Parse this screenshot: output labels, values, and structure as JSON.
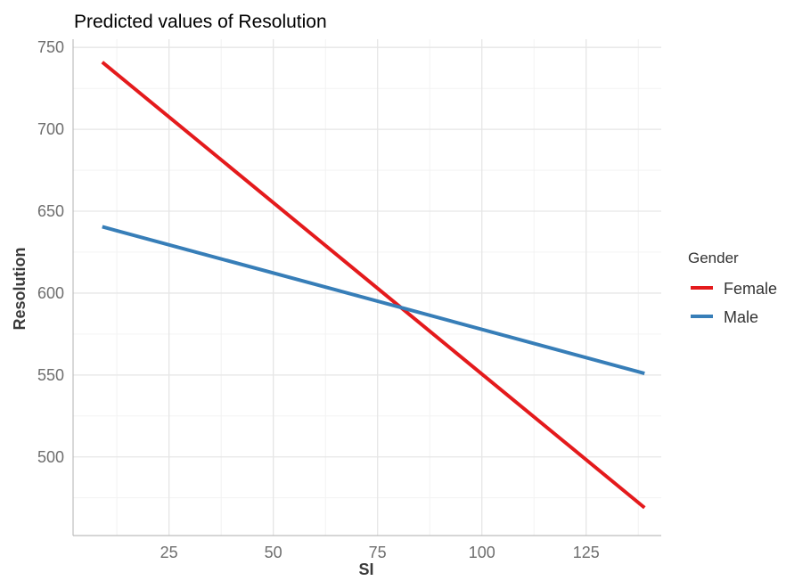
{
  "chart_data": {
    "type": "line",
    "title": "Predicted values of Resolution",
    "xlabel": "SI",
    "ylabel": "Resolution",
    "xlim": [
      2,
      143
    ],
    "ylim": [
      452,
      755
    ],
    "x_ticks": [
      25,
      50,
      75,
      100,
      125
    ],
    "x_minor_ticks": [
      12.5,
      37.5,
      62.5,
      87.5,
      112.5,
      137.5
    ],
    "y_ticks": [
      500,
      550,
      600,
      650,
      700,
      750
    ],
    "y_minor_ticks": [
      475,
      525,
      575,
      625,
      675,
      725
    ],
    "grid": true,
    "legend": {
      "title": "Gender",
      "position": "right"
    },
    "series": [
      {
        "name": "Female",
        "color": "#E41A1C",
        "x": [
          9,
          139
        ],
        "y": [
          741,
          469
        ]
      },
      {
        "name": "Male",
        "color": "#377EB8",
        "x": [
          9,
          139
        ],
        "y": [
          640.5,
          551
        ]
      }
    ]
  }
}
